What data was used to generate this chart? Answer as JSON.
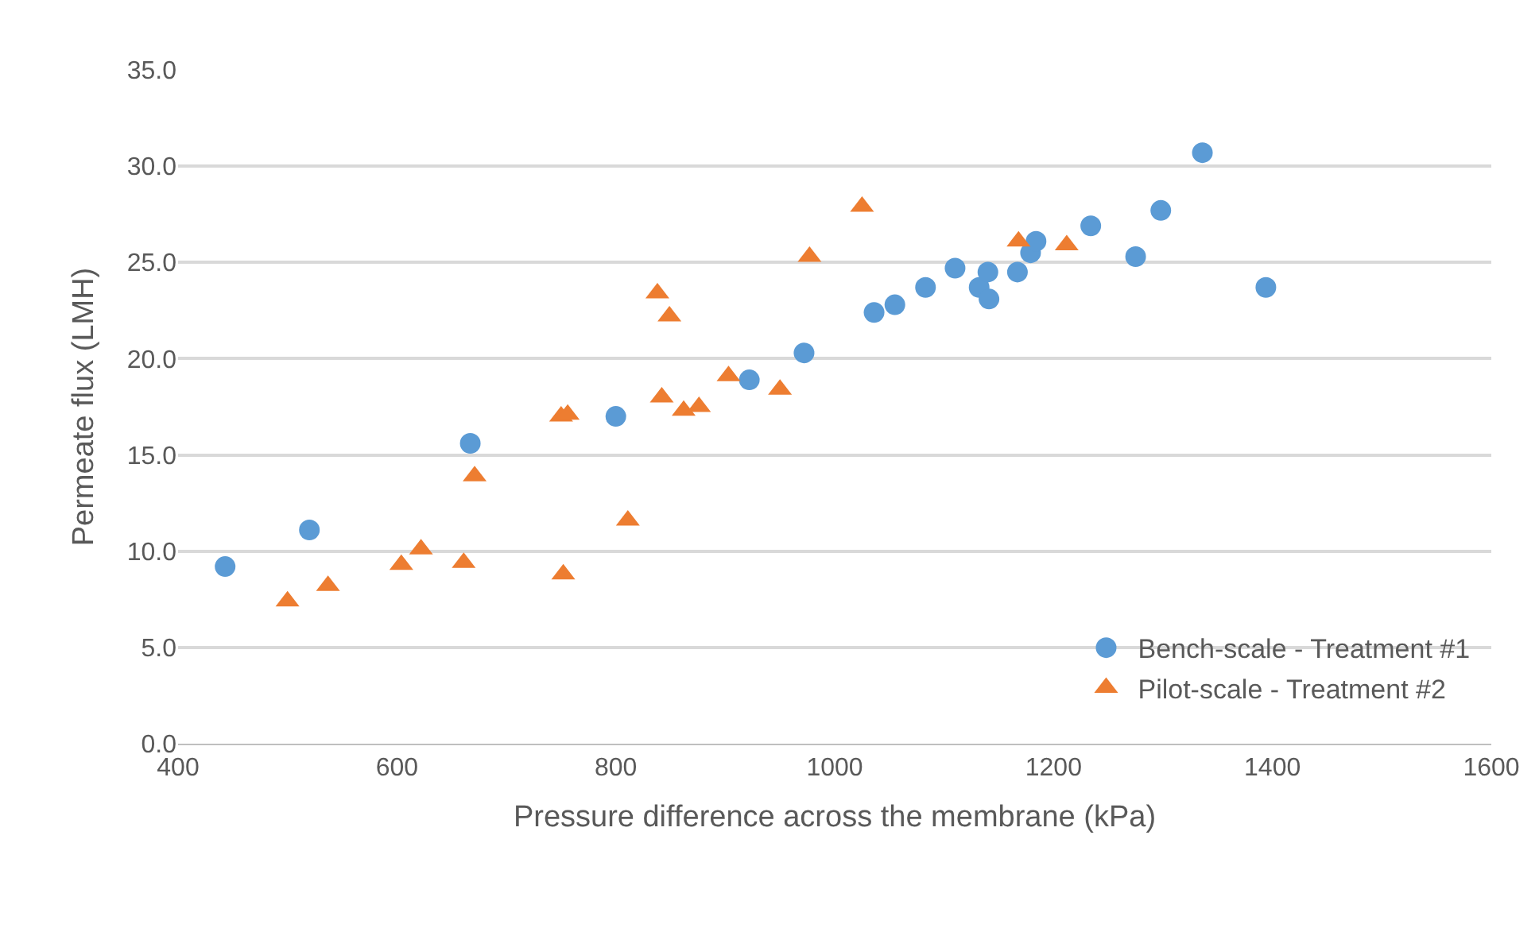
{
  "chart_data": {
    "type": "scatter",
    "xlabel": "Pressure difference across the membrane (kPa)",
    "ylabel": "Permeate flux (LMH)",
    "xlim": [
      400,
      1600
    ],
    "xticks": [
      400,
      600,
      800,
      1000,
      1200,
      1400,
      1600
    ],
    "ylim": [
      0,
      35
    ],
    "yticks": [
      {
        "value": 0,
        "label": "0.0"
      },
      {
        "value": 5,
        "label": "5.0"
      },
      {
        "value": 10,
        "label": "10.0"
      },
      {
        "value": 15,
        "label": "15.0"
      },
      {
        "value": 20,
        "label": "20.0"
      },
      {
        "value": 25,
        "label": "25.0"
      },
      {
        "value": 30,
        "label": "30.0"
      },
      {
        "value": 35,
        "label": "35.0"
      }
    ],
    "grid": "y",
    "legend": "bottom right",
    "series": [
      {
        "name": "Bench-scale - Treatment #1",
        "color": "#5b9bd5",
        "marker": "circle",
        "x": [
          443,
          520,
          667,
          800,
          922,
          972,
          1036,
          1055,
          1083,
          1110,
          1132,
          1140,
          1141,
          1167,
          1179,
          1184,
          1234,
          1275,
          1298,
          1336,
          1394
        ],
        "values": [
          9.2,
          11.1,
          15.6,
          17.0,
          18.9,
          20.3,
          22.4,
          22.8,
          23.7,
          24.7,
          23.7,
          24.5,
          23.1,
          24.5,
          25.5,
          26.1,
          26.9,
          25.3,
          27.7,
          30.7,
          23.7
        ]
      },
      {
        "name": "Pilot-scale - Treatment #2",
        "color": "#ed7d31",
        "marker": "triangle",
        "x": [
          500,
          537,
          604,
          622,
          661,
          671,
          750,
          756,
          752,
          811,
          838,
          842,
          849,
          862,
          876,
          903,
          950,
          977,
          1025,
          1168,
          1212
        ],
        "values": [
          7.4,
          8.2,
          9.3,
          10.1,
          9.4,
          13.9,
          17.0,
          17.1,
          8.8,
          11.6,
          23.4,
          18.0,
          22.2,
          17.3,
          17.5,
          19.1,
          18.4,
          25.3,
          27.9,
          26.1,
          25.9
        ]
      }
    ]
  }
}
